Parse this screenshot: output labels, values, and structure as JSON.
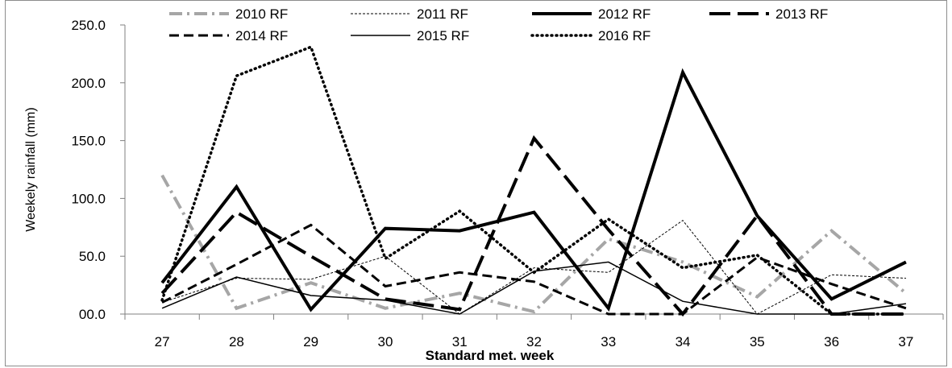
{
  "chart_data": {
    "type": "line",
    "title": "",
    "xlabel": "Standard met. week",
    "ylabel": "Weekely rainfall (mm)",
    "categories": [
      "27",
      "28",
      "29",
      "30",
      "31",
      "32",
      "33",
      "34",
      "35",
      "36",
      "37"
    ],
    "ylim": [
      0,
      250
    ],
    "yticks": [
      "00.0",
      "50.0",
      "100.0",
      "150.0",
      "200.0",
      "250.0"
    ],
    "grid": false,
    "legend_position": "top",
    "series": [
      {
        "name": "2010 RF",
        "style": "dashdot",
        "color": "#a6a6a6",
        "width": 4,
        "values": [
          120,
          5,
          27,
          5,
          18,
          2,
          65,
          45,
          15,
          72,
          18
        ]
      },
      {
        "name": "2011 RF",
        "style": "finedash",
        "color": "#000000",
        "width": 1,
        "values": [
          10,
          31,
          30,
          50,
          0,
          40,
          36,
          81,
          0,
          34,
          31
        ]
      },
      {
        "name": "2012 RF",
        "style": "solid",
        "color": "#000000",
        "width": 4,
        "values": [
          27,
          110,
          4,
          74,
          72,
          88,
          5,
          209,
          85,
          13,
          45
        ]
      },
      {
        "name": "2013 RF",
        "style": "longdash",
        "color": "#000000",
        "width": 4,
        "values": [
          18,
          88,
          50,
          13,
          4,
          152,
          73,
          0,
          85,
          0,
          0
        ]
      },
      {
        "name": "2014 RF",
        "style": "dash",
        "color": "#000000",
        "width": 3,
        "values": [
          10,
          43,
          77,
          24,
          36,
          28,
          0,
          0,
          49,
          26,
          5
        ]
      },
      {
        "name": "2015 RF",
        "style": "solid",
        "color": "#000000",
        "width": 1.5,
        "values": [
          5,
          32,
          16,
          12,
          0,
          37,
          45,
          11,
          0,
          0,
          9
        ]
      },
      {
        "name": "2016 RF",
        "style": "dot",
        "color": "#000000",
        "width": 3.5,
        "values": [
          12,
          206,
          231,
          48,
          89,
          36,
          82,
          40,
          51,
          0,
          0
        ]
      }
    ]
  }
}
